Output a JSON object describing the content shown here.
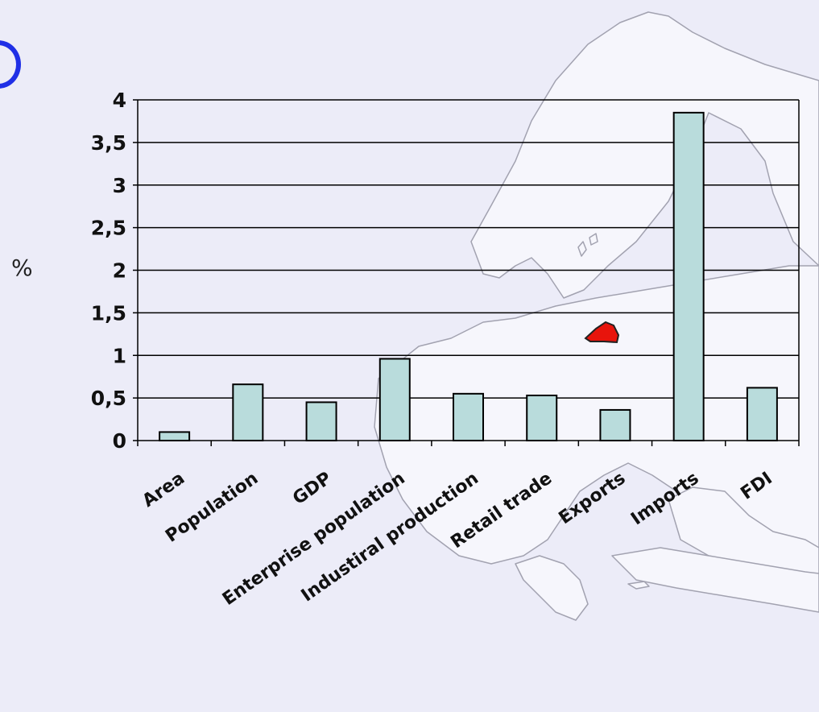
{
  "chart_data": {
    "type": "bar",
    "title": "",
    "xlabel": "",
    "ylabel": "%",
    "categories": [
      "Area",
      "Population",
      "GDP",
      "Enterprise population",
      "Industiral production",
      "Retail trade",
      "Exports",
      "Imports",
      "FDI"
    ],
    "values": [
      0.1,
      0.66,
      0.45,
      0.96,
      0.55,
      0.53,
      0.36,
      3.85,
      0.62
    ],
    "ylim": [
      0,
      4
    ],
    "yticks": [
      "0",
      "0,5",
      "1",
      "1,5",
      "2",
      "2,5",
      "3",
      "3,5",
      "4"
    ],
    "grid": true,
    "legend": "none"
  },
  "colors": {
    "background": "#ececf8",
    "bar_fill": "#b9dcdc",
    "bar_stroke": "#000000",
    "map_fill": "#f6f6fc",
    "map_stroke": "#9a9aa8",
    "region_highlight": "#e8140c",
    "corner_mark": "#1f2fe6"
  },
  "icons": {
    "background_map": "europe-map",
    "region_marker": "highlighted-region"
  }
}
